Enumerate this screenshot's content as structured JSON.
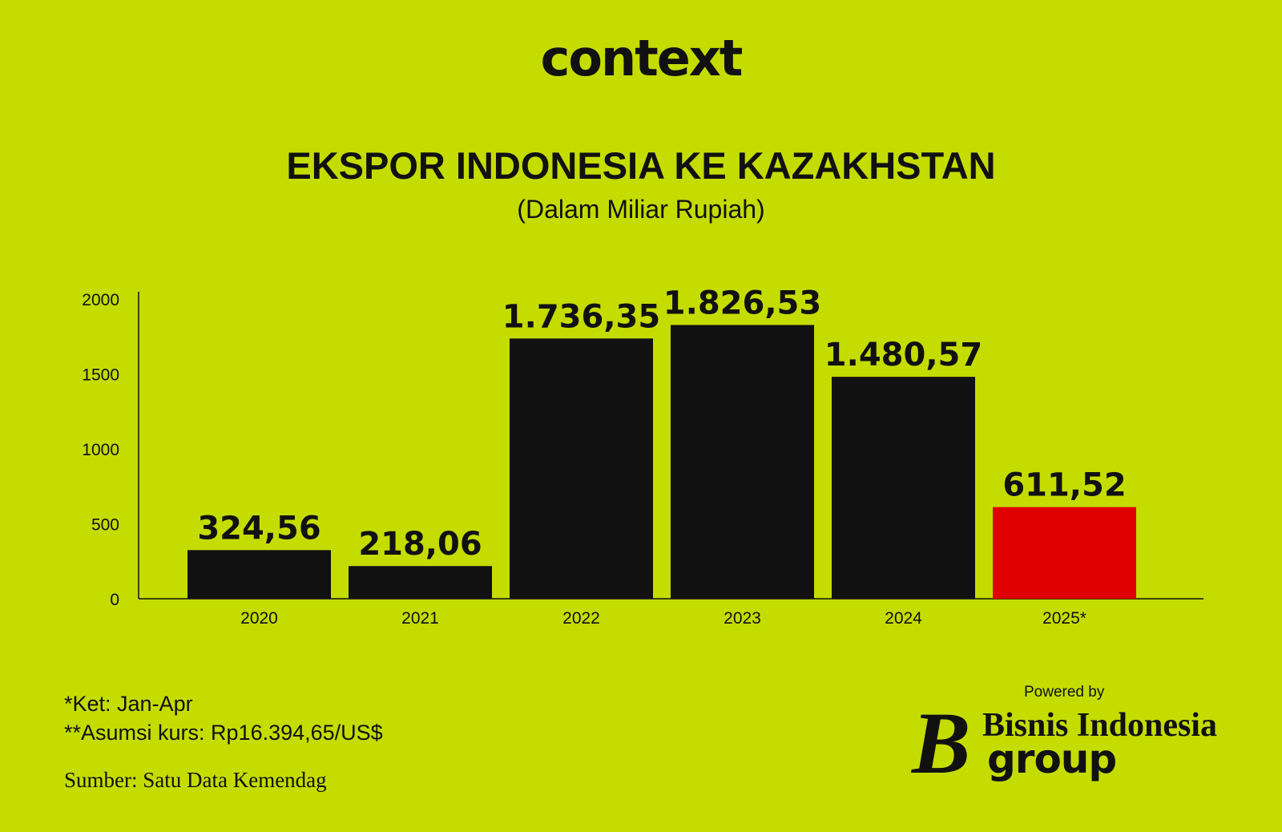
{
  "header": {
    "logo": "context",
    "title": "EKSPOR INDONESIA KE KAZAKHSTAN",
    "subtitle": "(Dalam Miliar Rupiah)"
  },
  "colors": {
    "background": "#c5dc00",
    "bar_default": "#111111",
    "bar_highlight": "#e00000"
  },
  "chart_data": {
    "type": "bar",
    "title": "EKSPOR INDONESIA KE KAZAKHSTAN",
    "subtitle": "(Dalam Miliar Rupiah)",
    "xlabel": "",
    "ylabel": "",
    "categories": [
      "2020",
      "2021",
      "2022",
      "2023",
      "2024",
      "2025*"
    ],
    "values": [
      324.56,
      218.06,
      1736.35,
      1826.53,
      1480.57,
      611.52
    ],
    "value_labels": [
      "324,56",
      "218,06",
      "1.736,35",
      "1.826,53",
      "1.480,57",
      "611,52"
    ],
    "highlight_category": "2025*",
    "ylim": [
      0,
      2000
    ],
    "yticks": [
      0,
      500,
      1000,
      1500,
      2000
    ],
    "grid": false,
    "legend": "none"
  },
  "footer": {
    "note_period": "*Ket: Jan-Apr",
    "note_rate": "**Asumsi kurs: Rp16.394,65/US$",
    "source": "Sumber: Satu Data Kemendag",
    "powered_by": "Powered by",
    "brand_initial": "B",
    "brand_name": "Bisnis Indonesia",
    "brand_group": "group"
  }
}
